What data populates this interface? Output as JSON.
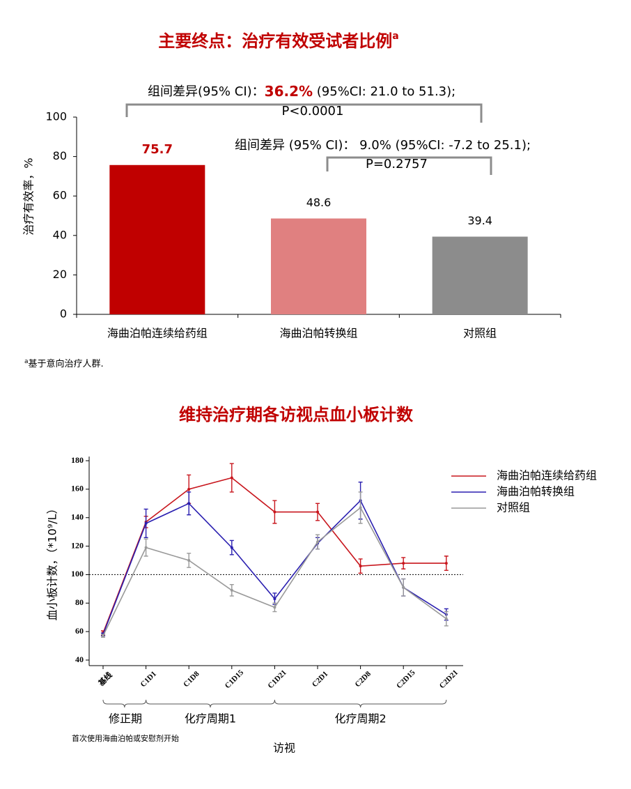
{
  "chart_data": [
    {
      "type": "bar",
      "title": "主要终点：治疗有效受试者比例",
      "title_sup": "a",
      "ylabel": "治疗有效率，%",
      "categories": [
        "海曲泊帕连续给药组",
        "海曲泊帕转换组",
        "对照组"
      ],
      "values": [
        75.7,
        48.6,
        39.4
      ],
      "colors": [
        "#c00000",
        "#e08080",
        "#8c8c8c"
      ],
      "ylim": [
        0,
        100
      ],
      "yticks": [
        0,
        20,
        40,
        60,
        80,
        100
      ],
      "annotations": [
        "组间差异(95% CI)：",
        "36.2%",
        " (95%CI: 21.0 to 51.3);",
        "P<0.0001",
        "组间差异 (95% CI)：  9.0% (95%CI: -7.2 to 25.1);",
        "P=0.2757"
      ],
      "footnote_marker": "a",
      "footnote": "基于意向治疗人群."
    },
    {
      "type": "line",
      "title": "维持治疗期各访视点血小板计数",
      "ylabel": "血小板计数，（*10⁹/L）",
      "xlabel": "访视",
      "categories": [
        "基线",
        "C1D1",
        "C1D8",
        "C1D15",
        "C1D21",
        "C2D1",
        "C2D8",
        "C2D15",
        "C2D21"
      ],
      "series": [
        {
          "name": "海曲泊帕连续给药组",
          "color": "#c8161d",
          "values": [
            59,
            137,
            160,
            168,
            144,
            144,
            106,
            108,
            108
          ],
          "errors": [
            1.5,
            4,
            10,
            10,
            8,
            6,
            5,
            4,
            5
          ]
        },
        {
          "name": "海曲泊帕转换组",
          "color": "#2a1fb0",
          "values": [
            58,
            136,
            150,
            119,
            83,
            122,
            152,
            91,
            72
          ],
          "errors": [
            1,
            10,
            8,
            5,
            4,
            4,
            13,
            6,
            4
          ]
        },
        {
          "name": "对照组",
          "color": "#999999",
          "values": [
            57,
            119,
            110,
            89,
            77,
            123,
            147,
            91,
            69
          ],
          "errors": [
            1,
            6,
            5,
            4,
            3,
            5,
            11,
            6,
            5
          ]
        }
      ],
      "ylim": [
        40,
        180
      ],
      "yticks": [
        40,
        60,
        80,
        100,
        120,
        140,
        160,
        180
      ],
      "reference_line": 100,
      "x_groups": [
        "修正期",
        "化疗周期1",
        "化疗周期2"
      ],
      "x_note": "首次使用海曲泊帕或安慰剂开始",
      "legend": "top-right"
    }
  ]
}
